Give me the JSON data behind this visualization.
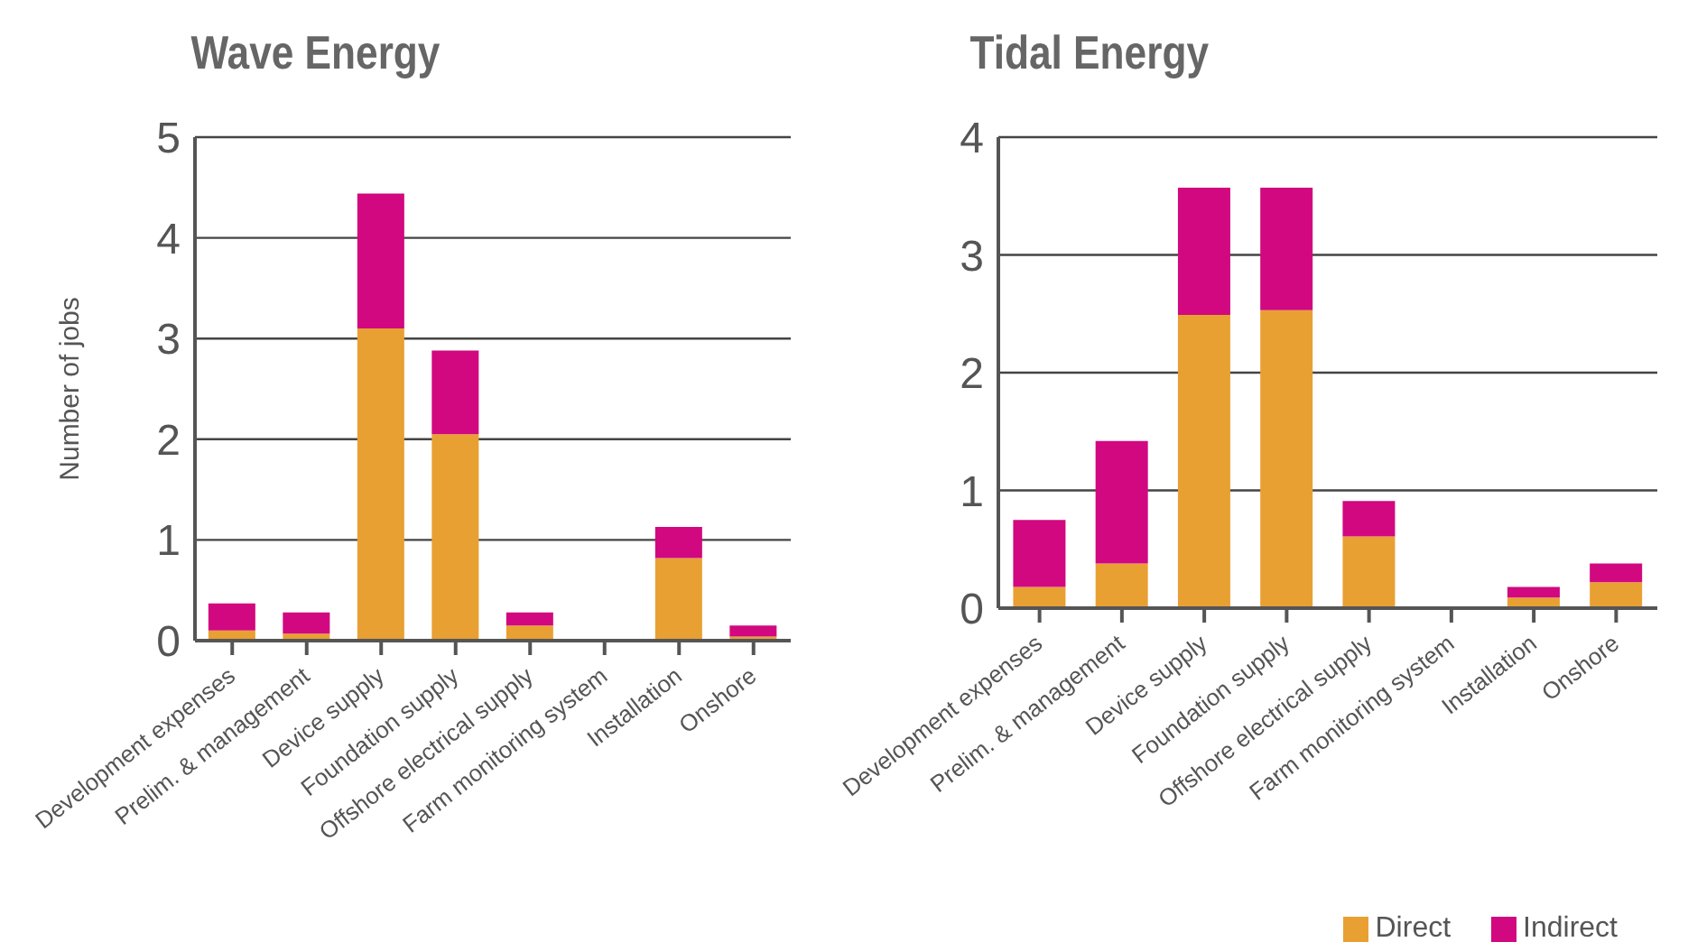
{
  "chart_data": [
    {
      "type": "bar",
      "title": "Wave Energy",
      "ylabel": "Number of jobs",
      "categories": [
        "Development expenses",
        "Prelim. & management",
        "Device supply",
        "Foundation supply",
        "Offshore electrical supply",
        "Farm monitoring system",
        "Installation",
        "Onshore"
      ],
      "stacked": true,
      "ylim": [
        0,
        5
      ],
      "yticks": [
        0,
        1,
        2,
        3,
        4,
        5
      ],
      "grid": "y",
      "legend": false,
      "series": [
        {
          "color": "#e8a033",
          "values": [
            0.1,
            0.07,
            3.1,
            2.05,
            0.15,
            0,
            0.82,
            0.04
          ]
        },
        {
          "color": "#d1087f",
          "values": [
            0.27,
            0.21,
            1.34,
            0.83,
            0.13,
            0,
            0.31,
            0.11
          ]
        }
      ]
    },
    {
      "type": "bar",
      "title": "Tidal Energy",
      "categories": [
        "Development expenses",
        "Prelim. & management",
        "Device supply",
        "Foundation supply",
        "Offshore electrical supply",
        "Farm monitoring system",
        "Installation",
        "Onshore"
      ],
      "stacked": true,
      "ylim": [
        0,
        4
      ],
      "yticks": [
        0,
        1,
        2,
        3,
        4
      ],
      "grid": "y",
      "legend": "bottom right",
      "series": [
        {
          "name": "Direct",
          "color": "#e8a033",
          "values": [
            0.18,
            0.38,
            2.49,
            2.53,
            0.61,
            0,
            0.09,
            0.22
          ]
        },
        {
          "name": "Indirect",
          "color": "#d1087f",
          "values": [
            0.57,
            1.04,
            1.08,
            1.04,
            0.3,
            0,
            0.09,
            0.16
          ]
        }
      ]
    }
  ]
}
